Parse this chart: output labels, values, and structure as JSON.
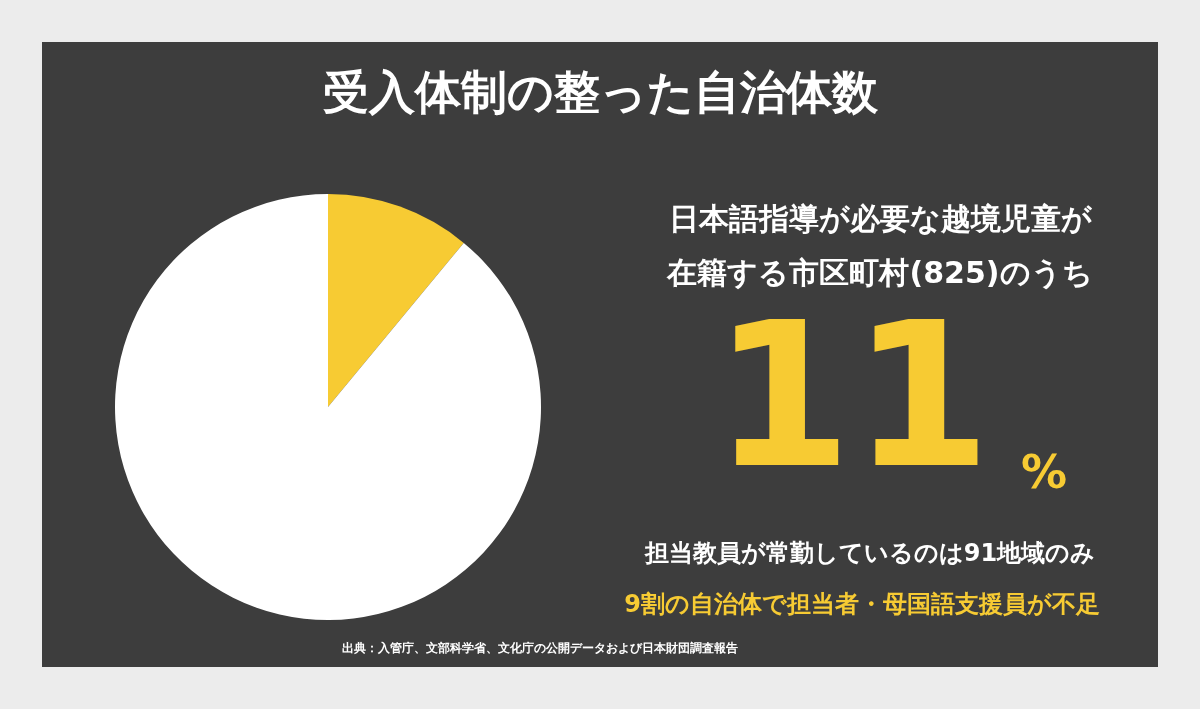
{
  "chart_data": {
    "type": "pie",
    "title": "受入体制の整った自治体数",
    "categories": [
      null,
      null
    ],
    "values": [
      11,
      89
    ],
    "colors": [
      "#f7cb33",
      "#ffffff"
    ],
    "annotations": [
      "日本語指導が必要な越境児童が",
      "在籍する市区町村(825)のうち",
      "11%",
      "担当教員が常勤しているのは91地域のみ",
      "9割の自治体で担当者・母国語支援員が不足",
      "出典：入管庁、文部科学省、文化庁の公開データおよび日本財団調査報告"
    ]
  }
}
